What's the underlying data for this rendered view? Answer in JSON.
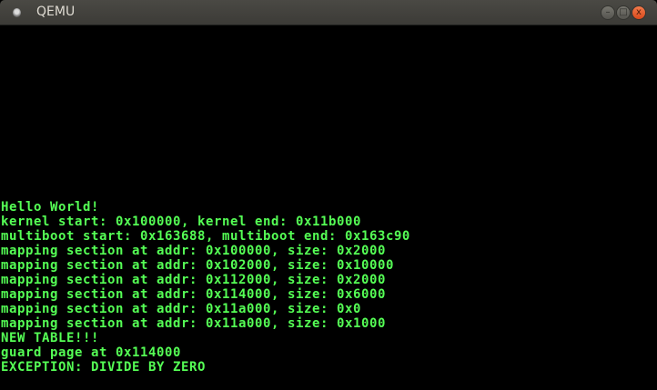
{
  "window": {
    "title": "QEMU",
    "controls": {
      "minimize": "–",
      "maximize": "□",
      "close": "x"
    }
  },
  "console": {
    "text_color": "#55ff55",
    "lines": [
      "Hello World!",
      "kernel start: 0x100000, kernel end: 0x11b000",
      "multiboot start: 0x163688, multiboot end: 0x163c90",
      "mapping section at addr: 0x100000, size: 0x2000",
      "mapping section at addr: 0x102000, size: 0x10000",
      "mapping section at addr: 0x112000, size: 0x2000",
      "mapping section at addr: 0x114000, size: 0x6000",
      "mapping section at addr: 0x11a000, size: 0x0",
      "mapping section at addr: 0x11a000, size: 0x1000",
      "NEW TABLE!!!",
      "guard page at 0x114000",
      "EXCEPTION: DIVIDE BY ZERO"
    ]
  }
}
